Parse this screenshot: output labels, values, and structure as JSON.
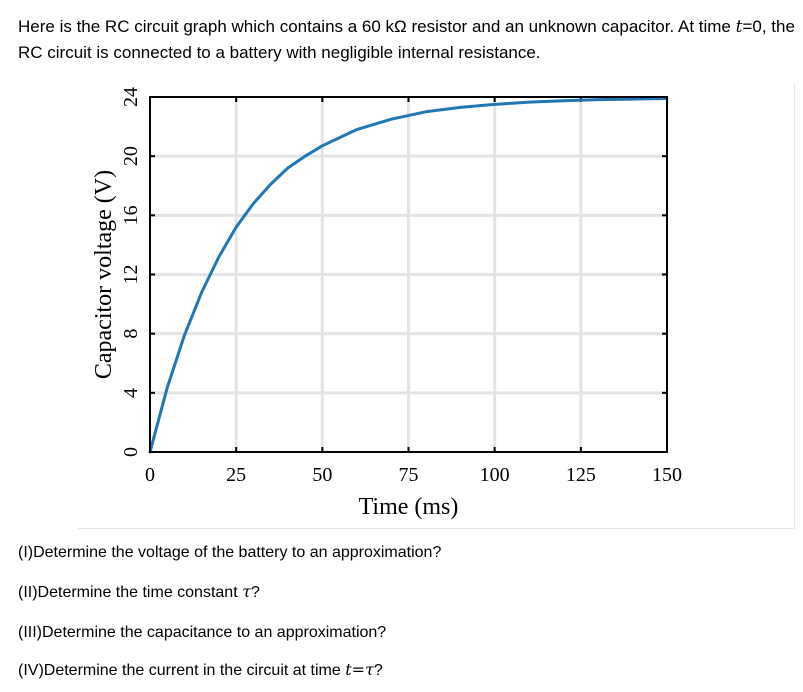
{
  "intro": {
    "line1_prefix": "Here is the RC circuit graph which contains a 60 kΩ resistor and an unknown capacitor. At time ",
    "line1_var": "t",
    "line1_suffix": "=0, the",
    "line2": "RC circuit is connected to a battery with negligible internal resistance."
  },
  "questions": [
    {
      "prefix": "(I)Determine the voltage of the battery to an approximation?",
      "var": "",
      "suffix": ""
    },
    {
      "prefix": "(II)Determine the time constant ",
      "var": "τ",
      "suffix": "?"
    },
    {
      "prefix": "(III)Determine the capacitance to an approximation?",
      "var": "",
      "suffix": ""
    },
    {
      "prefix": "(IV)Determine the current in the circuit at time ",
      "var": "t=τ",
      "suffix": "?"
    }
  ],
  "chart_data": {
    "type": "line",
    "title": "",
    "xlabel": "Time (ms)",
    "ylabel": "Capacitor voltage (V)",
    "xlim": [
      0,
      150
    ],
    "ylim": [
      0,
      24
    ],
    "xticks": [
      0,
      25,
      50,
      75,
      100,
      125,
      150
    ],
    "yticks": [
      0,
      4,
      8,
      12,
      16,
      20,
      24
    ],
    "grid": true,
    "legend": "none",
    "line_color": "#1f77b4",
    "series": [
      {
        "x": [
          0,
          5,
          10,
          15,
          20,
          25,
          30,
          35,
          40,
          45,
          50,
          60,
          70,
          80,
          90,
          100,
          110,
          120,
          130,
          140,
          150
        ],
        "y": [
          0,
          4.35,
          7.9,
          10.8,
          13.2,
          15.2,
          16.8,
          18.1,
          19.2,
          20.0,
          20.7,
          21.8,
          22.5,
          23.0,
          23.3,
          23.5,
          23.65,
          23.75,
          23.82,
          23.86,
          23.9
        ]
      }
    ]
  }
}
